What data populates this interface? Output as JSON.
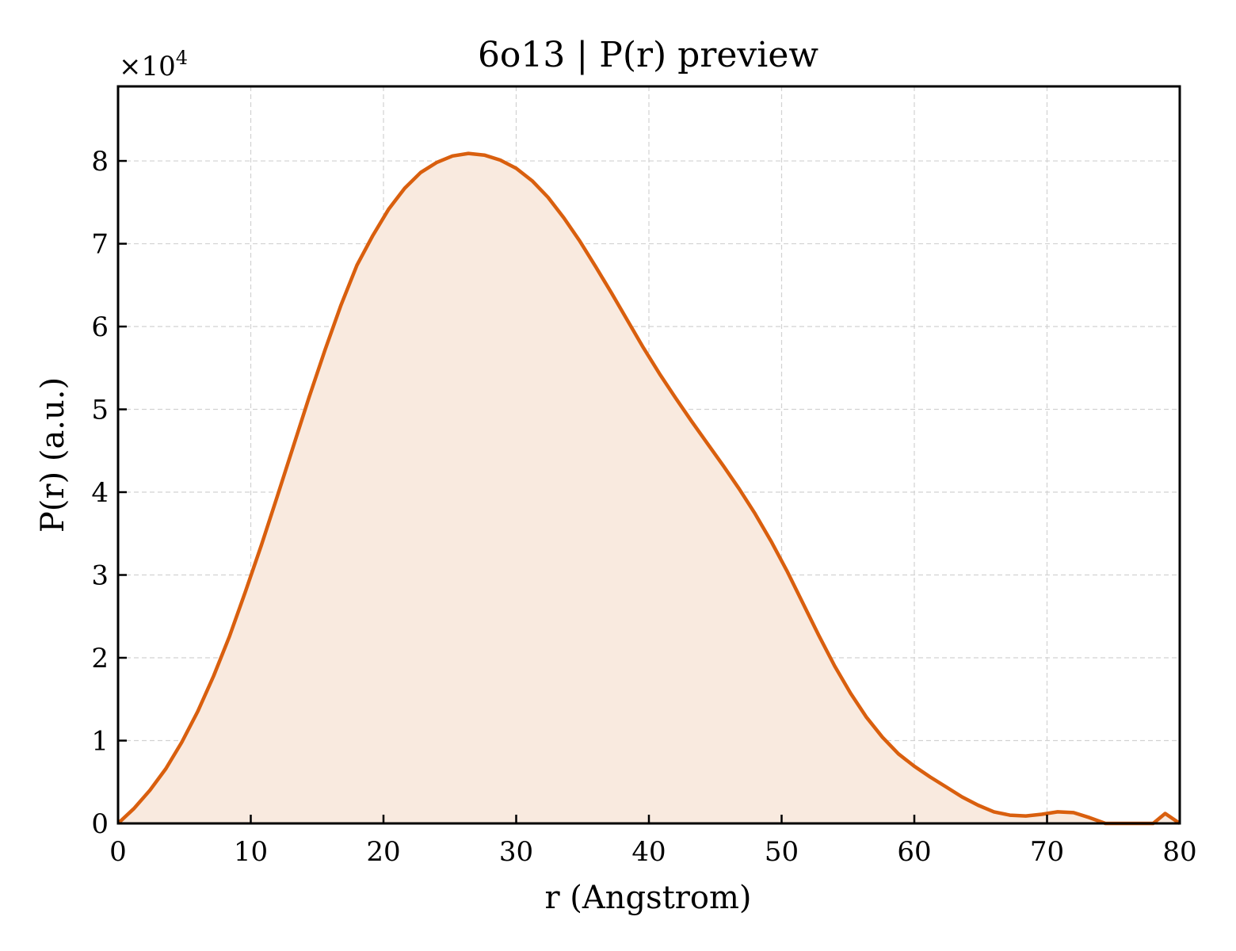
{
  "chart_data": {
    "type": "area",
    "title": "6o13 | P(r) preview",
    "xlabel": "r (Angstrom)",
    "ylabel": "P(r) (a.u.)",
    "y_multiplier_text": "×10",
    "y_multiplier_exp": "4",
    "xlim": [
      0,
      80
    ],
    "ylim": [
      0,
      8.9
    ],
    "xticks": [
      0,
      10,
      20,
      30,
      40,
      50,
      60,
      70,
      80
    ],
    "yticks": [
      0,
      1,
      2,
      3,
      4,
      5,
      6,
      7,
      8
    ],
    "grid": true,
    "line_color": "#d95f0e",
    "fill_color": "#f9eadf",
    "series": [
      {
        "x": [
          0,
          1.2,
          2.4,
          3.6,
          4.8,
          6.0,
          7.2,
          8.4,
          9.6,
          10.8,
          12.0,
          13.2,
          14.4,
          15.6,
          16.8,
          18.0,
          19.2,
          20.4,
          21.6,
          22.8,
          24.0,
          25.2,
          26.4,
          27.6,
          28.8,
          30.0,
          31.2,
          32.4,
          33.6,
          34.8,
          36.0,
          37.2,
          38.4,
          39.6,
          40.8,
          42.0,
          43.2,
          44.4,
          45.6,
          46.8,
          48.0,
          49.2,
          50.4,
          51.6,
          52.8,
          54.0,
          55.2,
          56.4,
          57.6,
          58.8,
          60.0,
          61.2,
          62.4,
          63.6,
          64.8,
          66.0,
          67.2,
          68.4,
          69.6,
          70.8,
          72.0,
          73.2,
          74.4,
          75.6,
          76.8,
          78.0,
          78.9,
          80.0
        ],
        "y": [
          0.0,
          0.18,
          0.4,
          0.66,
          0.98,
          1.35,
          1.78,
          2.26,
          2.8,
          3.36,
          3.95,
          4.55,
          5.15,
          5.72,
          6.26,
          6.74,
          7.1,
          7.42,
          7.67,
          7.86,
          7.98,
          8.06,
          8.09,
          8.07,
          8.01,
          7.91,
          7.76,
          7.56,
          7.31,
          7.03,
          6.72,
          6.4,
          6.07,
          5.74,
          5.43,
          5.14,
          4.86,
          4.59,
          4.32,
          4.04,
          3.74,
          3.41,
          3.05,
          2.66,
          2.27,
          1.9,
          1.57,
          1.28,
          1.04,
          0.84,
          0.69,
          0.56,
          0.44,
          0.32,
          0.22,
          0.14,
          0.1,
          0.09,
          0.11,
          0.14,
          0.13,
          0.07,
          0.0,
          0.0,
          0.0,
          0.0,
          0.12,
          0.0
        ]
      }
    ]
  }
}
